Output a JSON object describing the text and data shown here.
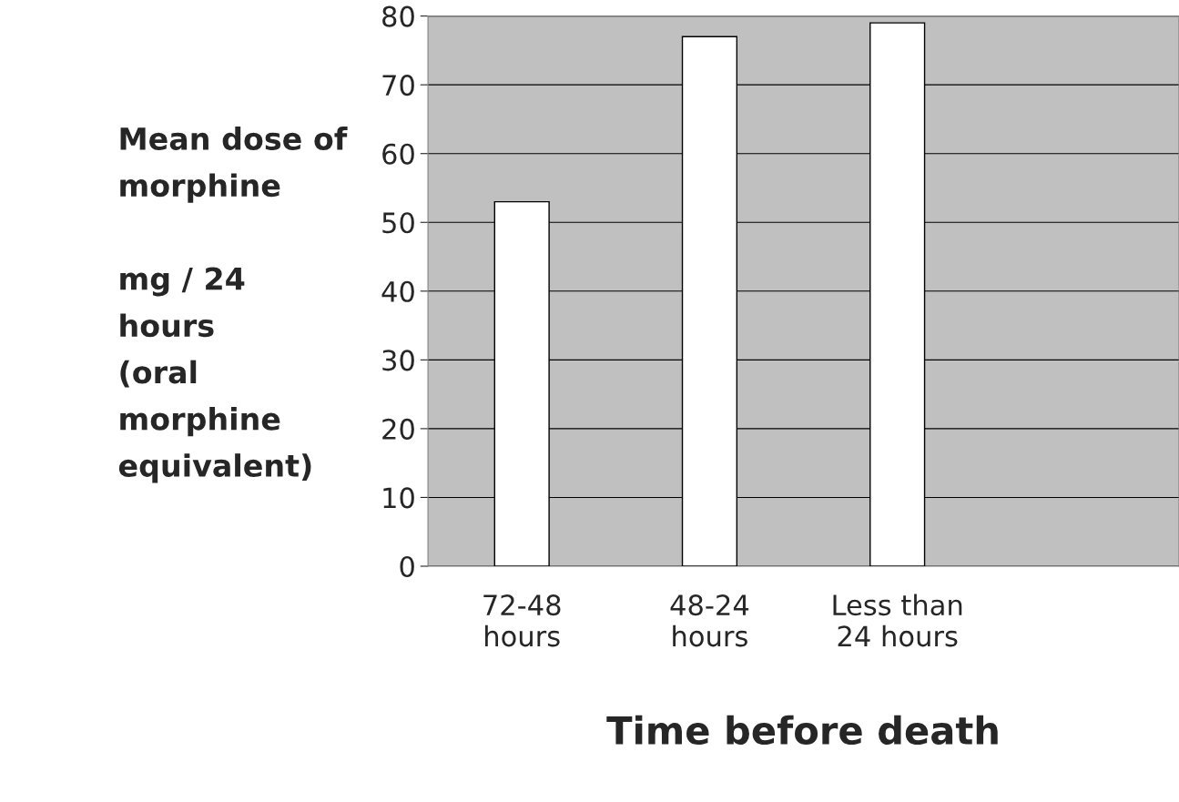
{
  "chart_data": {
    "type": "bar",
    "ylabel": "Mean dose of\nmorphine\n\nmg / 24\nhours\n(oral\nmorphine\nequivalent)",
    "xlabel": "Time before death",
    "categories": [
      "72-48\nhours",
      "48-24\nhours",
      "Less than\n24 hours",
      null
    ],
    "values": [
      53,
      77,
      79,
      null
    ],
    "color": "#ffffff",
    "ylim": [
      0,
      80
    ],
    "yticks": [
      0,
      10,
      20,
      30,
      40,
      50,
      60,
      70,
      80
    ],
    "grid": "y",
    "legend": false
  }
}
